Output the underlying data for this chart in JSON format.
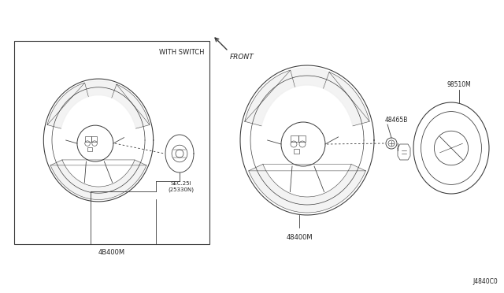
{
  "bg_color": "#ffffff",
  "line_color": "#3a3a3a",
  "text_color": "#222222",
  "fig_width": 6.4,
  "fig_height": 3.72,
  "diagram_code": "J4840C0",
  "labels": {
    "front": "FRONT",
    "with_switch": "WITH SWITCH",
    "left_part": "4B400M",
    "center_part": "48400M",
    "sec_label": "SEC.25I\n(25330N)",
    "part_48465B": "48465B",
    "part_98510M": "98510M"
  }
}
